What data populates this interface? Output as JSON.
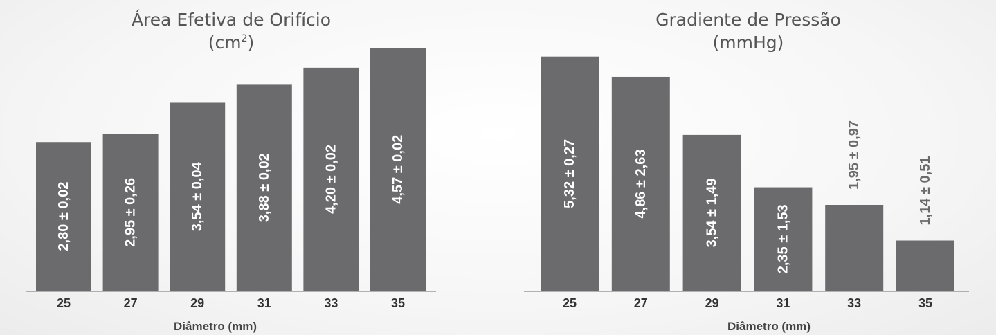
{
  "chart_data": [
    {
      "type": "bar",
      "title_line1": "Área Efetiva de Orifício",
      "title_line2": "(cm",
      "title_sup": "2",
      "title_line2_end": ")",
      "xlabel": "Diâmetro (mm)",
      "categories": [
        "25",
        "27",
        "29",
        "31",
        "33",
        "35"
      ],
      "values": [
        2.8,
        2.95,
        3.54,
        3.88,
        4.2,
        4.57
      ],
      "labels": [
        "2,80 ± 0,02",
        "2,95 ± 0,26",
        "3,54 ± 0,04",
        "3,88 ± 0,02",
        "4,20 ± 0,02",
        "4,57 ± 0,02"
      ],
      "ylim": [
        0,
        4.85
      ],
      "bar_color": "#6b6b6d",
      "label_color": "#ffffff"
    },
    {
      "type": "bar",
      "title_line1": "Gradiente de Pressão",
      "title_line2": "(mmHg)",
      "xlabel": "Diâmetro (mm)",
      "categories": [
        "25",
        "27",
        "29",
        "31",
        "33",
        "35"
      ],
      "values": [
        5.32,
        4.86,
        3.54,
        2.35,
        1.95,
        1.14
      ],
      "labels": [
        "5,32 ± 0,27",
        "4,86 ± 2,63",
        "3,54 ± 1,49",
        "2,35 ± 1,53",
        "1,95 ± 0,97",
        "1,14 ± 0,51"
      ],
      "label_inside": [
        true,
        true,
        true,
        true,
        false,
        false
      ],
      "ylim": [
        0,
        5.85
      ],
      "bar_color": "#6b6b6d",
      "label_color": "#ffffff",
      "label_outside_color": "#6b6b6d"
    }
  ]
}
